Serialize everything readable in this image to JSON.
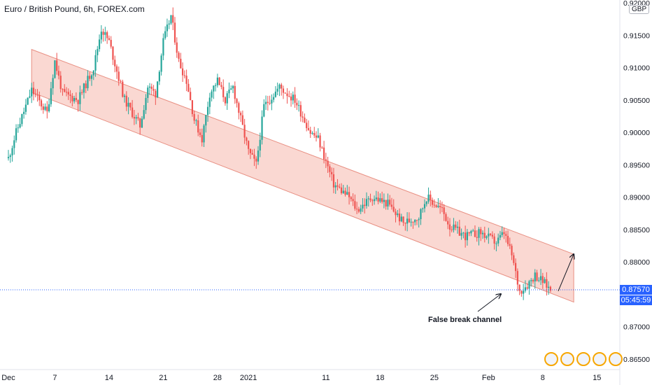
{
  "header": {
    "title": "Euro / British Pound, 6h, FOREX.com",
    "currency": "GBP"
  },
  "price_badge": {
    "price": "0.87570",
    "countdown": "05:45:59"
  },
  "annotation": {
    "text": "False break channel"
  },
  "colors": {
    "up": "#26a69a",
    "down": "#ef5350",
    "channel_fill": "#f5b8ad",
    "channel_border": "#e88f82",
    "accent": "#2962ff"
  },
  "chart_data": {
    "type": "candlestick",
    "symbol": "EUR/GBP",
    "timeframe": "6h",
    "x_ticks": [
      "Dec",
      "7",
      "14",
      "21",
      "28",
      "2021",
      "11",
      "18",
      "25",
      "Feb",
      "8",
      "15"
    ],
    "y_ticks": [
      "0.92000",
      "0.91500",
      "0.91000",
      "0.90500",
      "0.90000",
      "0.89500",
      "0.89000",
      "0.88500",
      "0.88000",
      "0.87000",
      "0.86500"
    ],
    "ylim": [
      0.8635,
      0.9205
    ],
    "last_price": 0.8757,
    "channel": {
      "upper": [
        [
          "Dec 4",
          0.9128
        ],
        [
          "Feb 12",
          0.8812
        ]
      ],
      "lower": [
        [
          "Dec 4",
          0.9062
        ],
        [
          "Feb 12",
          0.8738
        ]
      ]
    },
    "projection_arrow": [
      [
        "Feb 10",
        0.8755
      ],
      [
        "Feb 12",
        0.8812
      ]
    ]
  }
}
